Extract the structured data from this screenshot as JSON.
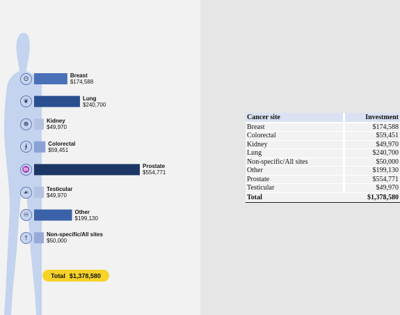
{
  "chart_data": {
    "type": "bar",
    "orientation": "horizontal",
    "categories": [
      "Breast",
      "Lung",
      "Kidney",
      "Colorectal",
      "Prostate",
      "Testicular",
      "Other",
      "Non-specific/All sites"
    ],
    "values": [
      174588,
      240700,
      49970,
      59451,
      554771,
      49970,
      199130,
      50000
    ],
    "value_labels": [
      "$174,588",
      "$240,700",
      "$49,970",
      "$59,451",
      "$554,771",
      "$49,970",
      "$199,130",
      "$50,000"
    ],
    "icons": [
      "breast-icon",
      "lung-icon",
      "kidney-icon",
      "colorectal-icon",
      "prostate-icon",
      "testicular-icon",
      "ribbon-icon",
      "body-icon"
    ],
    "colors": [
      "#4a70b8",
      "#2a4f8f",
      "#b6c2e2",
      "#8ba0d6",
      "#1c3766",
      "#b6c2e2",
      "#3b62a8",
      "#9aaad8"
    ],
    "title": "",
    "xlim": [
      0,
      554771
    ]
  },
  "total": {
    "label": "Total",
    "value": "$1,378,580"
  },
  "table": {
    "headers": [
      "Cancer site",
      "Investment"
    ],
    "rows": [
      [
        "Breast",
        "$174,588"
      ],
      [
        "Colorectal",
        "$59,451"
      ],
      [
        "Kidney",
        "$49,970"
      ],
      [
        "Lung",
        "$240,700"
      ],
      [
        "Non-specific/All sites",
        "$50,000"
      ],
      [
        "Other",
        "$199,130"
      ],
      [
        "Prostate",
        "$554,771"
      ],
      [
        "Testicular",
        "$49,970"
      ]
    ],
    "total": [
      "Total",
      "$1,378,580"
    ]
  },
  "colors": {
    "silhouette": "#c4d3ee",
    "pill": "#f7d32a",
    "header_fill": "#d9e1f2"
  }
}
